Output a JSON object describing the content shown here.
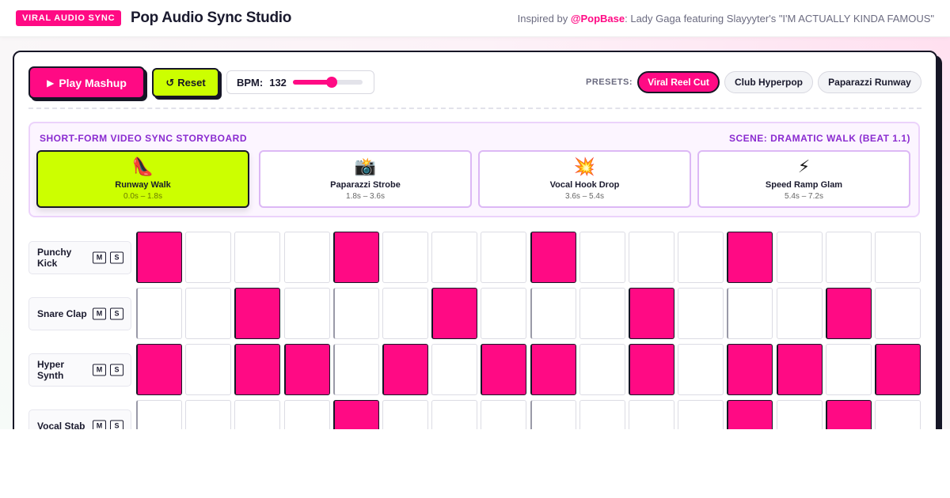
{
  "header": {
    "badge": "VIRAL AUDIO SYNC",
    "title": "Pop Audio Sync Studio",
    "credit_prefix": "Inspired by ",
    "credit_handle": "@PopBase",
    "credit_suffix": ": Lady Gaga featuring Slayyyter's \"I'M ACTUALLY KINDA FAMOUS\""
  },
  "controls": {
    "play_label": "Play Mashup",
    "play_icon": "▶",
    "reset_label": "Reset",
    "reset_icon": "↺",
    "bpm_label": "BPM:",
    "bpm_value": "132",
    "bpm_slider_fraction": 0.55
  },
  "presets": {
    "label": "PRESETS:",
    "items": [
      {
        "label": "Viral Reel Cut",
        "active": true
      },
      {
        "label": "Club Hyperpop",
        "active": false
      },
      {
        "label": "Paparazzi Runway",
        "active": false
      }
    ]
  },
  "storyboard": {
    "title": "SHORT-FORM VIDEO SYNC STORYBOARD",
    "scene_status": "SCENE: DRAMATIC WALK (BEAT 1.1)",
    "scenes": [
      {
        "icon": "👠",
        "name": "Runway Walk",
        "time": "0.0s – 1.8s",
        "active": true
      },
      {
        "icon": "📸",
        "name": "Paparazzi Strobe",
        "time": "1.8s – 3.6s",
        "active": false
      },
      {
        "icon": "💥",
        "name": "Vocal Hook Drop",
        "time": "3.6s – 5.4s",
        "active": false
      },
      {
        "icon": "⚡",
        "name": "Speed Ramp Glam",
        "time": "5.4s – 7.2s",
        "active": false
      }
    ]
  },
  "tracks": [
    {
      "name": "Punchy Kick",
      "mute": "M",
      "solo": "S",
      "steps": [
        1,
        0,
        0,
        0,
        1,
        0,
        0,
        0,
        1,
        0,
        0,
        0,
        1,
        0,
        0,
        0
      ]
    },
    {
      "name": "Snare Clap",
      "mute": "M",
      "solo": "S",
      "steps": [
        0,
        0,
        1,
        0,
        0,
        0,
        1,
        0,
        0,
        0,
        1,
        0,
        0,
        0,
        1,
        0
      ]
    },
    {
      "name": "Hyper Synth",
      "mute": "M",
      "solo": "S",
      "steps": [
        1,
        0,
        1,
        1,
        0,
        1,
        0,
        1,
        1,
        0,
        1,
        0,
        1,
        1,
        0,
        1
      ]
    },
    {
      "name": "Vocal Stab",
      "mute": "M",
      "solo": "S",
      "steps": [
        0,
        0,
        0,
        0,
        1,
        0,
        0,
        0,
        0,
        0,
        0,
        0,
        1,
        0,
        1,
        0
      ]
    }
  ]
}
